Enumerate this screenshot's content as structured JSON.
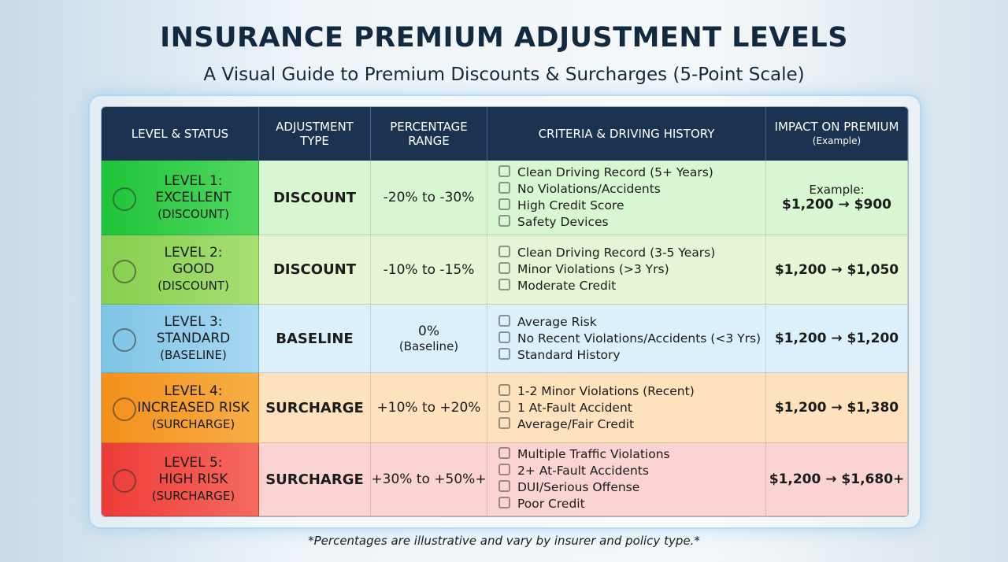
{
  "header": {
    "title": "INSURANCE PREMIUM ADJUSTMENT LEVELS",
    "subtitle": "A Visual Guide to Premium Discounts & Surcharges (5-Point Scale)"
  },
  "table": {
    "columns": [
      "LEVEL & STATUS",
      "ADJUSTMENT TYPE",
      "PERCENTAGE RANGE",
      "CRITERIA & DRIVING HISTORY",
      "IMPACT ON PREMIUM"
    ],
    "column_note": "(Example)",
    "rows": [
      {
        "level": "LEVEL 1:",
        "status": "EXCELLENT",
        "note": "(DISCOUNT)",
        "type": "DISCOUNT",
        "range": "-20% to -30%",
        "criteria": [
          "Clean Driving Record (5+ Years)",
          "No Violations/Accidents",
          "High Credit Score",
          "Safety Devices"
        ],
        "impact_label": "Example:",
        "impact": "$1,200 → $900"
      },
      {
        "level": "LEVEL 2:",
        "status": "GOOD",
        "note": "(DISCOUNT)",
        "type": "DISCOUNT",
        "range": "-10% to -15%",
        "criteria": [
          "Clean Driving Record (3-5 Years)",
          "Minor Violations (>3 Yrs)",
          "Moderate Credit"
        ],
        "impact": "$1,200 → $1,050"
      },
      {
        "level": "LEVEL 3:",
        "status": "STANDARD",
        "note": "(BASELINE)",
        "type": "BASELINE",
        "range": "0%",
        "range_note": "(Baseline)",
        "criteria": [
          "Average Risk",
          "No Recent Violations/Accidents (<3 Yrs)",
          "Standard History"
        ],
        "impact": "$1,200 → $1,200"
      },
      {
        "level": "LEVEL 4:",
        "status": "INCREASED RISK",
        "note": "(SURCHARGE)",
        "type": "SURCHARGE",
        "range": "+10% to +20%",
        "criteria": [
          "1-2 Minor Violations (Recent)",
          "1 At-Fault Accident",
          "Average/Fair Credit"
        ],
        "impact": "$1,200 → $1,380"
      },
      {
        "level": "LEVEL 5:",
        "status": "HIGH RISK",
        "note": "(SURCHARGE)",
        "type": "SURCHARGE",
        "range": "+30% to +50%+",
        "criteria": [
          "Multiple Traffic Violations",
          "2+ At-Fault Accidents",
          "DUI/Serious Offense",
          "Poor Credit"
        ],
        "impact": "$1,200 → $1,680+"
      }
    ]
  },
  "footnote": "*Percentages are illustrative and vary by insurer and policy type.*"
}
